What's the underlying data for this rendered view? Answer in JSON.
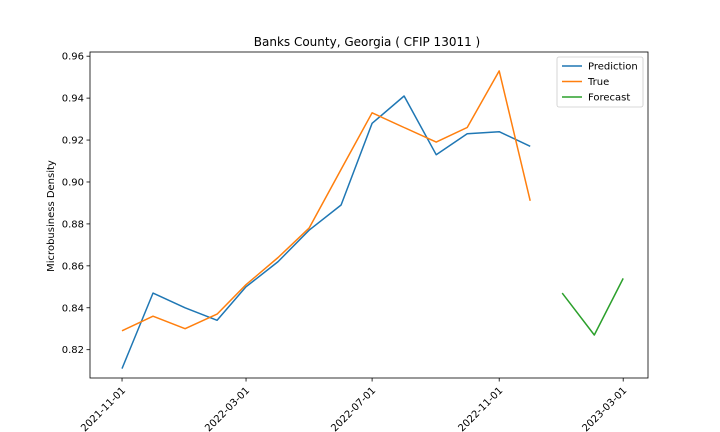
{
  "chart_data": {
    "type": "line",
    "title": "Banks County, Georgia ( CFIP 13011 )",
    "xlabel": "",
    "ylabel": "Microbusiness Density",
    "xlim": [
      "2021-10-01",
      "2023-03-25"
    ],
    "ylim": [
      0.8065,
      0.962
    ],
    "x_ticks": [
      "2021-11-01",
      "2022-03-01",
      "2022-07-01",
      "2022-11-01",
      "2023-03-01"
    ],
    "y_ticks": [
      0.82,
      0.84,
      0.86,
      0.88,
      0.9,
      0.92,
      0.94,
      0.96
    ],
    "y_tick_labels": [
      "0.82",
      "0.84",
      "0.86",
      "0.88",
      "0.90",
      "0.92",
      "0.94",
      "0.96"
    ],
    "legend_position": "top-right",
    "grid": false,
    "series": [
      {
        "name": "Prediction",
        "color": "#1f77b4",
        "points": [
          [
            "2021-11-01",
            0.811
          ],
          [
            "2021-12-01",
            0.847
          ],
          [
            "2022-01-01",
            0.84
          ],
          [
            "2022-02-01",
            0.834
          ],
          [
            "2022-03-01",
            0.85
          ],
          [
            "2022-04-01",
            0.862
          ],
          [
            "2022-05-01",
            0.877
          ],
          [
            "2022-06-01",
            0.889
          ],
          [
            "2022-07-01",
            0.928
          ],
          [
            "2022-08-01",
            0.941
          ],
          [
            "2022-09-01",
            0.913
          ],
          [
            "2022-10-01",
            0.923
          ],
          [
            "2022-11-01",
            0.924
          ],
          [
            "2022-12-01",
            0.917
          ]
        ]
      },
      {
        "name": "True",
        "color": "#ff7f0e",
        "points": [
          [
            "2021-11-01",
            0.829
          ],
          [
            "2021-12-01",
            0.836
          ],
          [
            "2022-01-01",
            0.83
          ],
          [
            "2022-02-01",
            0.837
          ],
          [
            "2022-03-01",
            0.851
          ],
          [
            "2022-04-01",
            0.864
          ],
          [
            "2022-05-01",
            0.878
          ],
          [
            "2022-06-01",
            0.906
          ],
          [
            "2022-07-01",
            0.933
          ],
          [
            "2022-08-01",
            0.926
          ],
          [
            "2022-09-01",
            0.919
          ],
          [
            "2022-10-01",
            0.926
          ],
          [
            "2022-11-01",
            0.953
          ],
          [
            "2022-12-01",
            0.891
          ]
        ]
      },
      {
        "name": "Forecast",
        "color": "#2ca02c",
        "points": [
          [
            "2023-01-01",
            0.847
          ],
          [
            "2023-02-01",
            0.827
          ],
          [
            "2023-03-01",
            0.854
          ]
        ]
      }
    ]
  }
}
